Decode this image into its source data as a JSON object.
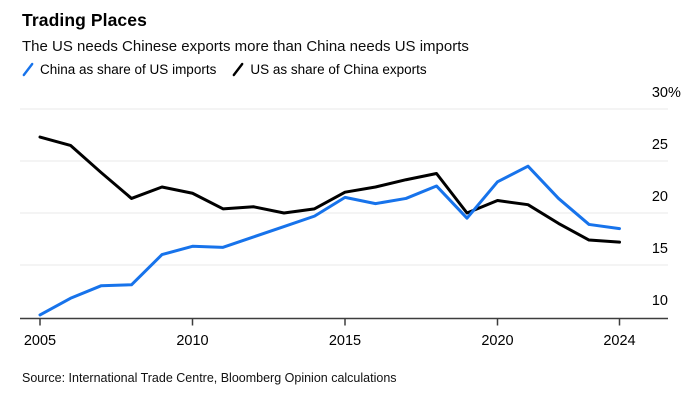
{
  "header": {
    "title": "Trading Places",
    "subtitle": "The US needs Chinese exports more than China needs US imports"
  },
  "legend": {
    "items": [
      {
        "label": "China as share of US imports",
        "color": "#1773EB"
      },
      {
        "label": "US as share of China exports",
        "color": "#000000"
      }
    ]
  },
  "source_note": "Source: International Trade Centre, Bloomberg Opinion calculations",
  "colors": {
    "blue_series": "#1773EB",
    "black_series": "#000000",
    "gridline": "#e8e8e8",
    "axis": "#3d3d3d",
    "background": "#ffffff"
  },
  "chart_data": {
    "type": "line",
    "title": "Trading Places",
    "subtitle": "The US needs Chinese exports more than China needs US imports",
    "xlabel": "",
    "ylabel": "",
    "unit": "%",
    "grid": "horizontal",
    "legend_position": "top-left",
    "xlim": [
      2005,
      2024
    ],
    "ylim": [
      10,
      30
    ],
    "x": [
      2005,
      2006,
      2007,
      2008,
      2009,
      2010,
      2011,
      2012,
      2013,
      2014,
      2015,
      2016,
      2017,
      2018,
      2019,
      2020,
      2021,
      2022,
      2023,
      2024
    ],
    "series": [
      {
        "name": "China as share of US imports",
        "color": "#1773EB",
        "values": [
          10.2,
          11.8,
          13.0,
          13.1,
          16.0,
          16.8,
          16.7,
          17.7,
          18.7,
          19.7,
          21.5,
          20.9,
          21.4,
          22.6,
          19.5,
          23.0,
          24.5,
          21.4,
          18.9,
          18.5
        ]
      },
      {
        "name": "US as share of China exports",
        "color": "#000000",
        "values": [
          27.3,
          26.5,
          23.9,
          21.4,
          22.5,
          21.9,
          20.4,
          20.6,
          20.0,
          20.4,
          22.0,
          22.5,
          23.2,
          23.8,
          20.0,
          21.2,
          20.8,
          19.0,
          17.4,
          17.2
        ]
      }
    ],
    "ytick_values": [
      30,
      25,
      20,
      15,
      10
    ],
    "ytick_labels": [
      "30%",
      "25",
      "20",
      "15",
      "10"
    ],
    "xtick_values": [
      2005,
      2010,
      2015,
      2020,
      2024
    ],
    "xtick_labels": [
      "2005",
      "2010",
      "2015",
      "2020",
      "2024"
    ]
  }
}
